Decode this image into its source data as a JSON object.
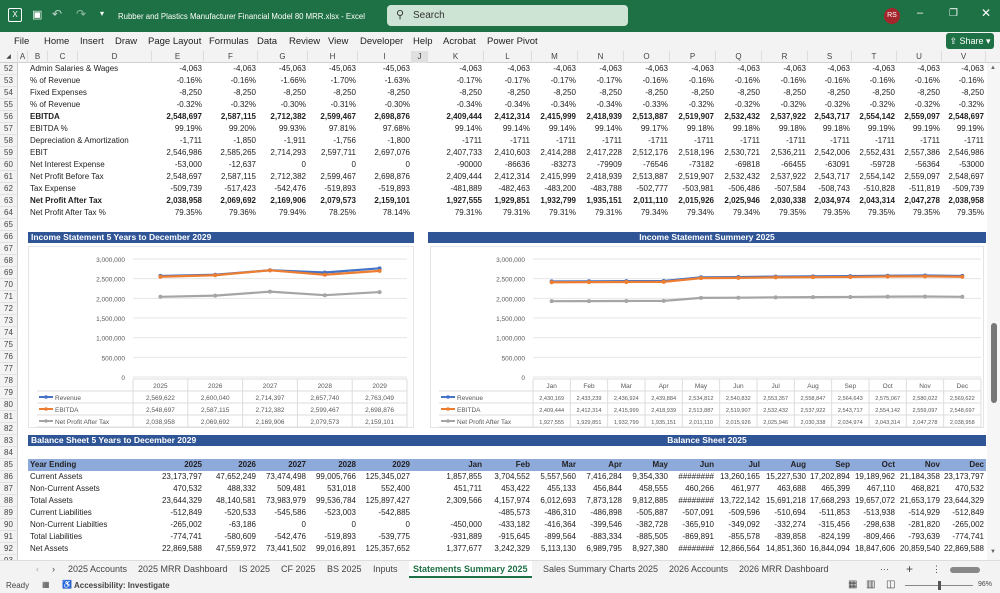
{
  "window": {
    "title": "Rubber and Plastics Manufacturer Financial Model 80 MRR.xlsx  -  Excel",
    "search_placeholder": "Search",
    "avatar": "RS",
    "brand_color": "#1e7145"
  },
  "ribbon": {
    "tabs": [
      "File",
      "Home",
      "Insert",
      "Draw",
      "Page Layout",
      "Formulas",
      "Data",
      "Review",
      "View",
      "Developer",
      "Help",
      "Acrobat",
      "Power Pivot"
    ],
    "share": "Share"
  },
  "columns": [
    "A",
    "B",
    "C",
    "D",
    "E",
    "F",
    "G",
    "H",
    "I",
    "J",
    "K",
    "L",
    "M",
    "N",
    "O",
    "P",
    "Q",
    "R",
    "S",
    "T",
    "U",
    "V"
  ],
  "income_rows": [
    {
      "row": "52",
      "label": "Admin Salaries & Wages",
      "years": [
        "-4,063",
        "-4,063",
        "-45,063",
        "-45,063",
        "-45,063"
      ],
      "months": [
        "-4,063",
        "-4,063",
        "-4,063",
        "-4,063",
        "-4,063",
        "-4,063",
        "-4,063",
        "-4,063",
        "-4,063",
        "-4,063",
        "-4,063",
        "-4,063"
      ]
    },
    {
      "row": "53",
      "label": "% of Revenue",
      "years": [
        "-0.16%",
        "-0.16%",
        "-1.66%",
        "-1.70%",
        "-1.63%"
      ],
      "months": [
        "-0.17%",
        "-0.17%",
        "-0.17%",
        "-0.17%",
        "-0.16%",
        "-0.16%",
        "-0.16%",
        "-0.16%",
        "-0.16%",
        "-0.16%",
        "-0.16%",
        "-0.16%"
      ]
    },
    {
      "row": "54",
      "label": "Fixed Expenses",
      "years": [
        "-8,250",
        "-8,250",
        "-8,250",
        "-8,250",
        "-8,250"
      ],
      "months": [
        "-8,250",
        "-8,250",
        "-8,250",
        "-8,250",
        "-8,250",
        "-8,250",
        "-8,250",
        "-8,250",
        "-8,250",
        "-8,250",
        "-8,250",
        "-8,250"
      ]
    },
    {
      "row": "55",
      "label": "% of Revenue",
      "years": [
        "-0.32%",
        "-0.32%",
        "-0.30%",
        "-0.31%",
        "-0.30%"
      ],
      "months": [
        "-0.34%",
        "-0.34%",
        "-0.34%",
        "-0.34%",
        "-0.33%",
        "-0.32%",
        "-0.32%",
        "-0.32%",
        "-0.32%",
        "-0.32%",
        "-0.32%",
        "-0.32%"
      ]
    },
    {
      "row": "56",
      "label": "EBITDA",
      "bold": true,
      "years": [
        "2,548,697",
        "2,587,115",
        "2,712,382",
        "2,599,467",
        "2,698,876"
      ],
      "months": [
        "2,409,444",
        "2,412,314",
        "2,415,999",
        "2,418,939",
        "2,513,887",
        "2,519,907",
        "2,532,432",
        "2,537,922",
        "2,543,717",
        "2,554,142",
        "2,559,097",
        "2,548,697"
      ]
    },
    {
      "row": "57",
      "label": "EBITDA %",
      "years": [
        "99.19%",
        "99.20%",
        "99.93%",
        "97.81%",
        "97.68%"
      ],
      "months": [
        "99.14%",
        "99.14%",
        "99.14%",
        "99.14%",
        "99.17%",
        "99.18%",
        "99.18%",
        "99.18%",
        "99.18%",
        "99.19%",
        "99.19%",
        "99.19%"
      ]
    },
    {
      "row": "58",
      "label": "Depreciation & Amortization",
      "years": [
        "-1,711",
        "-1,850",
        "-1,911",
        "-1,756",
        "-1,800"
      ],
      "months": [
        "-1711",
        "-1711",
        "-1711",
        "-1711",
        "-1711",
        "-1711",
        "-1711",
        "-1711",
        "-1711",
        "-1711",
        "-1711",
        "-1711"
      ]
    },
    {
      "row": "59",
      "label": "EBIT",
      "years": [
        "2,546,986",
        "2,585,265",
        "2,714,293",
        "2,597,711",
        "2,697,076"
      ],
      "months": [
        "2,407,733",
        "2,410,603",
        "2,414,288",
        "2,417,228",
        "2,512,176",
        "2,518,196",
        "2,530,721",
        "2,536,211",
        "2,542,006",
        "2,552,431",
        "2,557,386",
        "2,546,986"
      ]
    },
    {
      "row": "60",
      "label": "Net Interest Expense",
      "years": [
        "-53,000",
        "-12,637",
        "0",
        "0",
        "0"
      ],
      "months": [
        "-90000",
        "-86636",
        "-83273",
        "-79909",
        "-76546",
        "-73182",
        "-69818",
        "-66455",
        "-63091",
        "-59728",
        "-56364",
        "-53000"
      ]
    },
    {
      "row": "61",
      "label": "Net Profit Before Tax",
      "years": [
        "2,548,697",
        "2,587,115",
        "2,712,382",
        "2,599,467",
        "2,698,876"
      ],
      "months": [
        "2,409,444",
        "2,412,314",
        "2,415,999",
        "2,418,939",
        "2,513,887",
        "2,519,907",
        "2,532,432",
        "2,537,922",
        "2,543,717",
        "2,554,142",
        "2,559,097",
        "2,548,697"
      ]
    },
    {
      "row": "62",
      "label": "Tax Expense",
      "years": [
        "-509,739",
        "-517,423",
        "-542,476",
        "-519,893",
        "-519,893"
      ],
      "months": [
        "-481,889",
        "-482,463",
        "-483,200",
        "-483,788",
        "-502,777",
        "-503,981",
        "-506,486",
        "-507,584",
        "-508,743",
        "-510,828",
        "-511,819",
        "-509,739"
      ]
    },
    {
      "row": "63",
      "label": "Net Profit After Tax",
      "bold": true,
      "years": [
        "2,038,958",
        "2,069,692",
        "2,169,906",
        "2,079,573",
        "2,159,101"
      ],
      "months": [
        "1,927,555",
        "1,929,851",
        "1,932,799",
        "1,935,151",
        "2,011,110",
        "2,015,926",
        "2,025,946",
        "2,030,338",
        "2,034,974",
        "2,043,314",
        "2,047,278",
        "2,038,958"
      ]
    },
    {
      "row": "64",
      "label": "Net Profit After Tax %",
      "years": [
        "79.35%",
        "79.36%",
        "79.94%",
        "78.25%",
        "78.14%"
      ],
      "months": [
        "79.31%",
        "79.31%",
        "79.31%",
        "79.31%",
        "79.34%",
        "79.34%",
        "79.34%",
        "79.35%",
        "79.35%",
        "79.35%",
        "79.35%",
        "79.35%"
      ]
    }
  ],
  "chart_data": [
    {
      "type": "line",
      "title": "Income Statement 5 Years to December 2029",
      "categories": [
        "2025",
        "2026",
        "2027",
        "2028",
        "2029"
      ],
      "ylim": [
        0,
        3000000
      ],
      "yticks": [
        "0",
        "500,000",
        "1,000,000",
        "1,500,000",
        "2,000,000",
        "2,500,000",
        "3,000,000"
      ],
      "grid": true,
      "legend": "data-table",
      "series": [
        {
          "name": "Revenue",
          "color": "#4472c4",
          "values": [
            2569622,
            2600040,
            2714397,
            2657740,
            2763049
          ],
          "labels": [
            "2,569,622",
            "2,600,040",
            "2,714,397",
            "2,657,740",
            "2,763,049"
          ]
        },
        {
          "name": "EBITDA",
          "color": "#ed7d31",
          "values": [
            2548697,
            2587115,
            2712382,
            2599467,
            2698876
          ],
          "labels": [
            "2,548,697",
            "2,587,115",
            "2,712,382",
            "2,599,467",
            "2,698,876"
          ]
        },
        {
          "name": "Net Profit After Tax",
          "color": "#a5a5a5",
          "values": [
            2038958,
            2069692,
            2169906,
            2079573,
            2159101
          ],
          "labels": [
            "2,038,958",
            "2,069,692",
            "2,169,906",
            "2,079,573",
            "2,159,101"
          ]
        }
      ]
    },
    {
      "type": "line",
      "title": "Income Statement Summery 2025",
      "categories": [
        "Jan",
        "Feb",
        "Mar",
        "Apr",
        "May",
        "Jun",
        "Jul",
        "Aug",
        "Sep",
        "Oct",
        "Nov",
        "Dec"
      ],
      "ylim": [
        0,
        3000000
      ],
      "yticks": [
        "0",
        "500,000",
        "1,000,000",
        "1,500,000",
        "2,000,000",
        "2,500,000",
        "3,000,000"
      ],
      "grid": true,
      "legend": "data-table",
      "series": [
        {
          "name": "Revenue",
          "color": "#4472c4",
          "values": [
            2430169,
            2433239,
            2436924,
            2439884,
            2534812,
            2540832,
            2553357,
            2558847,
            2564643,
            2575067,
            2580022,
            2569622
          ],
          "labels": [
            "2,430,169",
            "2,433,239",
            "2,436,924",
            "2,439,884",
            "2,534,812",
            "2,540,832",
            "2,553,357",
            "2,558,847",
            "2,564,643",
            "2,575,067",
            "2,580,022",
            "2,569,622"
          ]
        },
        {
          "name": "EBITDA",
          "color": "#ed7d31",
          "values": [
            2409444,
            2412314,
            2415999,
            2418939,
            2513887,
            2519907,
            2532432,
            2537922,
            2543717,
            2554142,
            2559097,
            2548697
          ],
          "labels": [
            "2,409,444",
            "2,412,314",
            "2,415,999",
            "2,418,939",
            "2,513,887",
            "2,519,907",
            "2,532,432",
            "2,537,922",
            "2,543,717",
            "2,554,142",
            "2,559,097",
            "2,548,697"
          ]
        },
        {
          "name": "Net Profit After Tax",
          "color": "#a5a5a5",
          "values": [
            1927555,
            1929851,
            1932799,
            1935151,
            2011110,
            2015926,
            2025946,
            2030338,
            2034974,
            2043314,
            2047278,
            2038958
          ],
          "labels": [
            "1,927,555",
            "1,929,851",
            "1,932,799",
            "1,935,151",
            "2,011,110",
            "2,015,926",
            "2,025,946",
            "2,030,338",
            "2,034,974",
            "2,043,314",
            "2,047,278",
            "2,038,958"
          ]
        }
      ]
    }
  ],
  "balance": {
    "title_left": "Balance Sheet 5 Years to December 2029",
    "title_right": "Balance Sheet 2025",
    "header": {
      "label": "Year Ending",
      "years": [
        "2025",
        "2026",
        "2027",
        "2028",
        "2029"
      ],
      "months": [
        "Jan",
        "Feb",
        "Mar",
        "Apr",
        "May",
        "Jun",
        "Jul",
        "Aug",
        "Sep",
        "Oct",
        "Nov",
        "Dec"
      ]
    },
    "rows": [
      {
        "row": "86",
        "label": "Current Assets",
        "years": [
          "23,173,797",
          "47,652,249",
          "73,474,498",
          "99,005,766",
          "125,345,027"
        ],
        "months": [
          "1,857,855",
          "3,704,552",
          "5,557,560",
          "7,416,284",
          "9,354,330",
          "########",
          "13,260,165",
          "15,227,530",
          "17,202,894",
          "19,189,962",
          "21,184,358",
          "23,173,797"
        ]
      },
      {
        "row": "87",
        "label": "Non-Current Assets",
        "years": [
          "470,532",
          "488,332",
          "509,481",
          "531,018",
          "552,400"
        ],
        "months": [
          "451,711",
          "453,422",
          "455,133",
          "456,844",
          "458,555",
          "460,266",
          "461,977",
          "463,688",
          "465,399",
          "467,110",
          "468,821",
          "470,532"
        ]
      },
      {
        "row": "88",
        "label": "Total Assets",
        "years": [
          "23,644,329",
          "48,140,581",
          "73,983,979",
          "99,536,784",
          "125,897,427"
        ],
        "months": [
          "2,309,566",
          "4,157,974",
          "6,012,693",
          "7,873,128",
          "9,812,885",
          "########",
          "13,722,142",
          "15,691,218",
          "17,668,293",
          "19,657,072",
          "21,653,179",
          "23,644,329"
        ]
      },
      {
        "row": "89",
        "label": "Current Liabilities",
        "years": [
          "-512,849",
          "-520,533",
          "-545,586",
          "-523,003",
          "-542,885"
        ],
        "months": [
          "",
          "-485,573",
          "-486,310",
          "-486,898",
          "-505,887",
          "-507,091",
          "-509,596",
          "-510,694",
          "-511,853",
          "-513,938",
          "-514,929",
          "-512,849"
        ]
      },
      {
        "row": "90",
        "label": "Non-Current Liabilties",
        "years": [
          "-265,002",
          "-63,186",
          "0",
          "0",
          "0"
        ],
        "months": [
          "-450,000",
          "-433,182",
          "-416,364",
          "-399,546",
          "-382,728",
          "-365,910",
          "-349,092",
          "-332,274",
          "-315,456",
          "-298,638",
          "-281,820",
          "-265,002"
        ]
      },
      {
        "row": "91",
        "label": "Total Liabilities",
        "years": [
          "-774,741",
          "-580,609",
          "-542,476",
          "-519,893",
          "-539,775"
        ],
        "months": [
          "-931,889",
          "-915,645",
          "-899,564",
          "-883,334",
          "-885,505",
          "-869,891",
          "-855,578",
          "-839,858",
          "-824,199",
          "-809,466",
          "-793,639",
          "-774,741"
        ]
      },
      {
        "row": "92",
        "label": "Net Assets",
        "years": [
          "22,869,588",
          "47,559,972",
          "73,441,502",
          "99,016,891",
          "125,357,652"
        ],
        "months": [
          "1,377,677",
          "3,242,329",
          "5,113,130",
          "6,989,795",
          "8,927,380",
          "########",
          "12,866,564",
          "14,851,360",
          "16,844,094",
          "18,847,606",
          "20,859,540",
          "22,869,588"
        ]
      }
    ]
  },
  "sheet_tabs": [
    {
      "label": "2025 Accounts"
    },
    {
      "label": "2025 MRR Dashboard"
    },
    {
      "label": "IS 2025"
    },
    {
      "label": "CF 2025"
    },
    {
      "label": "BS 2025"
    },
    {
      "label": "Inputs"
    },
    {
      "label": "Statements Summary 2025",
      "active": true
    },
    {
      "label": "Sales Summary Charts 2025"
    },
    {
      "label": "2026 Accounts"
    },
    {
      "label": "2026 MRR Dashboard"
    }
  ],
  "status": {
    "ready": "Ready",
    "accessibility": "Accessibility: Investigate",
    "zoom": "96%",
    "zoom_fraction": 0.96
  }
}
